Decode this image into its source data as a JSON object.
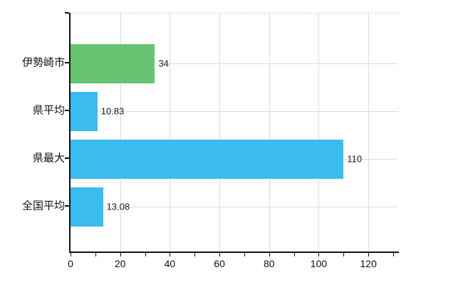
{
  "chart_data": {
    "type": "bar",
    "orientation": "horizontal",
    "title": "",
    "xlabel": "",
    "ylabel": "",
    "categories": [
      "伊勢崎市",
      "県平均",
      "県最大",
      "全国平均"
    ],
    "values": [
      34,
      10.83,
      110,
      13.08
    ],
    "value_labels": [
      "34",
      "10.83",
      "110",
      "13.08"
    ],
    "bar_colors": [
      "#66c472",
      "#3bbcee",
      "#3bbcee",
      "#3bbcee"
    ],
    "xlim": [
      0,
      132
    ],
    "x_major_ticks": [
      0,
      20,
      40,
      60,
      80,
      100,
      120
    ],
    "x_major_tick_labels": [
      "0",
      "20",
      "40",
      "60",
      "80",
      "100",
      "120"
    ],
    "x_minor_tick_step": 10,
    "x_minor_tick_max": 130,
    "grid": true,
    "legend": false,
    "background_color": "#ffffff",
    "axis_color": "#111111",
    "gridline_color": "#dcdcdc",
    "text_color": "#111111"
  }
}
